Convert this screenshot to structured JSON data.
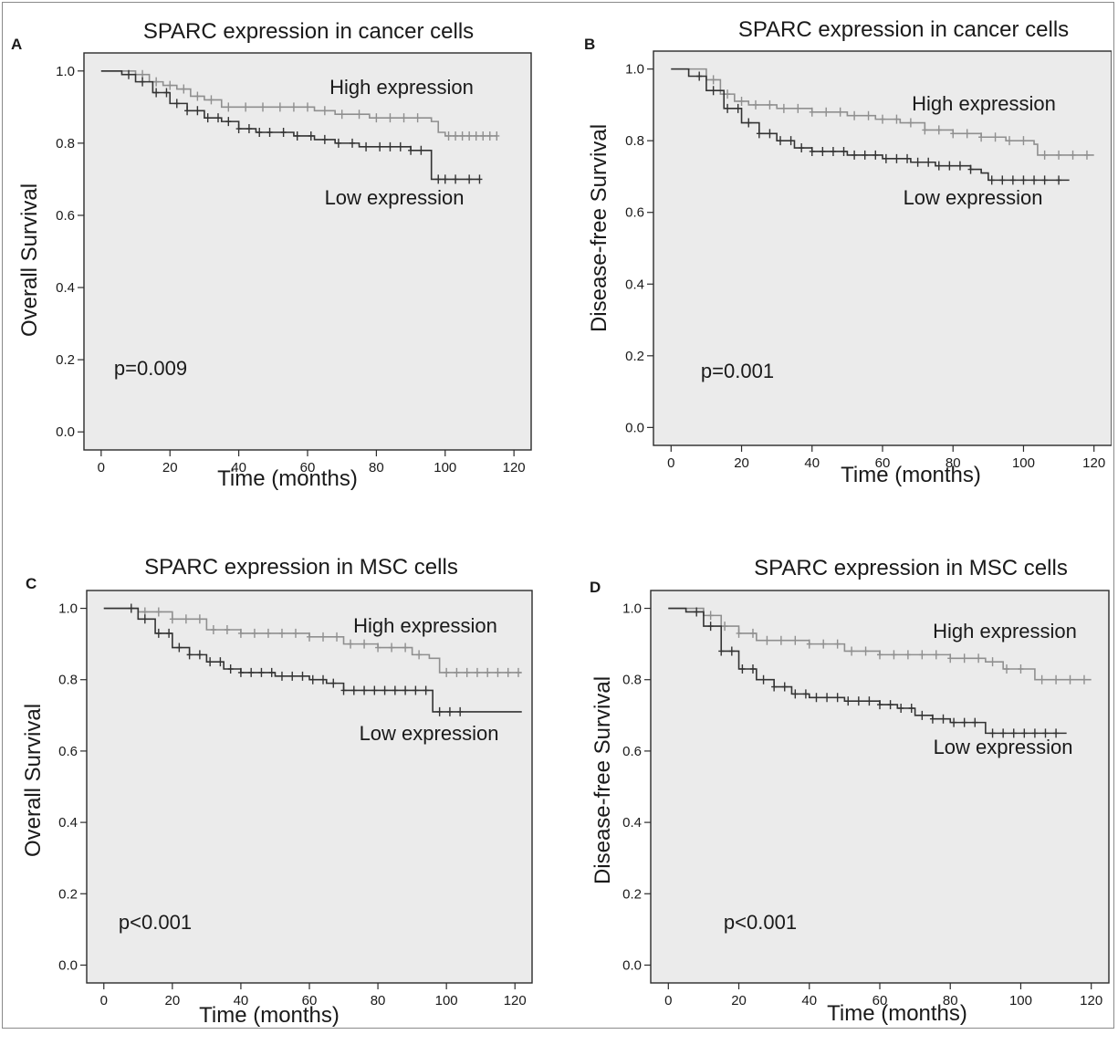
{
  "figure": {
    "panels": [
      "A",
      "B",
      "C",
      "D"
    ]
  },
  "chart_data": [
    {
      "panel_label": "A",
      "type": "line",
      "title": "SPARC expression in cancer cells",
      "xlabel": "Time (months)",
      "ylabel": "Overall Survival",
      "xlim": [
        -5,
        125
      ],
      "ylim": [
        -0.05,
        1.05
      ],
      "xticks": [
        "0",
        "20",
        "40",
        "60",
        "80",
        "100",
        "120"
      ],
      "yticks": [
        "0.0",
        "0.2",
        "0.4",
        "0.6",
        "0.8",
        "1.0"
      ],
      "annotation": "p=0.009",
      "grid": false,
      "series": [
        {
          "name": "High expression",
          "color": "#8f8f8f",
          "points": [
            [
              0,
              1.0
            ],
            [
              5,
              1.0
            ],
            [
              10,
              0.99
            ],
            [
              14,
              0.97
            ],
            [
              18,
              0.96
            ],
            [
              22,
              0.95
            ],
            [
              26,
              0.93
            ],
            [
              30,
              0.92
            ],
            [
              35,
              0.9
            ],
            [
              45,
              0.9
            ],
            [
              55,
              0.9
            ],
            [
              62,
              0.89
            ],
            [
              68,
              0.88
            ],
            [
              78,
              0.87
            ],
            [
              88,
              0.87
            ],
            [
              96,
              0.86
            ],
            [
              98,
              0.83
            ],
            [
              100,
              0.82
            ],
            [
              115,
              0.82
            ]
          ],
          "censor": [
            12,
            16,
            20,
            24,
            28,
            32,
            37,
            42,
            47,
            52,
            56,
            60,
            65,
            70,
            75,
            80,
            84,
            88,
            92,
            101,
            103,
            105,
            107,
            109,
            111,
            113,
            115
          ]
        },
        {
          "name": "Low expression",
          "color": "#333333",
          "points": [
            [
              0,
              1.0
            ],
            [
              6,
              0.99
            ],
            [
              10,
              0.97
            ],
            [
              15,
              0.94
            ],
            [
              20,
              0.91
            ],
            [
              25,
              0.89
            ],
            [
              30,
              0.87
            ],
            [
              35,
              0.86
            ],
            [
              40,
              0.84
            ],
            [
              45,
              0.83
            ],
            [
              50,
              0.83
            ],
            [
              56,
              0.82
            ],
            [
              62,
              0.81
            ],
            [
              68,
              0.8
            ],
            [
              75,
              0.79
            ],
            [
              85,
              0.79
            ],
            [
              90,
              0.78
            ],
            [
              95,
              0.78
            ],
            [
              96,
              0.7
            ],
            [
              110,
              0.7
            ]
          ],
          "censor": [
            8,
            12,
            16,
            19,
            22,
            25,
            28,
            31,
            34,
            37,
            40,
            43,
            46,
            49,
            53,
            57,
            61,
            65,
            69,
            73,
            77,
            81,
            84,
            87,
            90,
            93,
            98,
            100,
            103,
            107,
            110
          ]
        }
      ],
      "series_labels": [
        "High expression",
        "Low expression"
      ]
    },
    {
      "panel_label": "B",
      "type": "line",
      "title": "SPARC expression in cancer cells",
      "xlabel": "Time (months)",
      "ylabel": "Disease-free Survival",
      "xlim": [
        -5,
        125
      ],
      "ylim": [
        -0.05,
        1.05
      ],
      "xticks": [
        "0",
        "20",
        "40",
        "60",
        "80",
        "100",
        "120"
      ],
      "yticks": [
        "0.0",
        "0.2",
        "0.4",
        "0.6",
        "0.8",
        "1.0"
      ],
      "annotation": "p=0.001",
      "grid": false,
      "series": [
        {
          "name": "High expression",
          "color": "#8f8f8f",
          "points": [
            [
              0,
              1.0
            ],
            [
              6,
              1.0
            ],
            [
              10,
              0.97
            ],
            [
              14,
              0.93
            ],
            [
              18,
              0.91
            ],
            [
              22,
              0.9
            ],
            [
              30,
              0.89
            ],
            [
              40,
              0.88
            ],
            [
              50,
              0.87
            ],
            [
              58,
              0.86
            ],
            [
              65,
              0.85
            ],
            [
              72,
              0.83
            ],
            [
              80,
              0.82
            ],
            [
              88,
              0.81
            ],
            [
              95,
              0.8
            ],
            [
              103,
              0.79
            ],
            [
              104,
              0.76
            ],
            [
              120,
              0.76
            ]
          ],
          "censor": [
            12,
            16,
            20,
            24,
            28,
            32,
            36,
            40,
            44,
            48,
            52,
            56,
            60,
            64,
            68,
            72,
            76,
            80,
            84,
            88,
            92,
            96,
            100,
            106,
            110,
            114,
            118
          ]
        },
        {
          "name": "Low expression",
          "color": "#333333",
          "points": [
            [
              0,
              1.0
            ],
            [
              5,
              0.98
            ],
            [
              10,
              0.94
            ],
            [
              15,
              0.89
            ],
            [
              20,
              0.85
            ],
            [
              25,
              0.82
            ],
            [
              30,
              0.8
            ],
            [
              35,
              0.78
            ],
            [
              40,
              0.77
            ],
            [
              50,
              0.76
            ],
            [
              60,
              0.75
            ],
            [
              68,
              0.74
            ],
            [
              75,
              0.73
            ],
            [
              85,
              0.72
            ],
            [
              88,
              0.71
            ],
            [
              90,
              0.69
            ],
            [
              113,
              0.69
            ]
          ],
          "censor": [
            8,
            12,
            16,
            19,
            22,
            25,
            28,
            31,
            34,
            37,
            40,
            43,
            46,
            49,
            52,
            55,
            58,
            61,
            64,
            67,
            70,
            73,
            76,
            79,
            82,
            85,
            91,
            94,
            97,
            100,
            103,
            106,
            110
          ]
        }
      ],
      "series_labels": [
        "High expression",
        "Low expression"
      ]
    },
    {
      "panel_label": "C",
      "type": "line",
      "title": "SPARC expression in MSC cells",
      "xlabel": "Time (months)",
      "ylabel": "Overall Survival",
      "xlim": [
        -5,
        125
      ],
      "ylim": [
        -0.05,
        1.05
      ],
      "xticks": [
        "0",
        "20",
        "40",
        "60",
        "80",
        "100",
        "120"
      ],
      "yticks": [
        "0.0",
        "0.2",
        "0.4",
        "0.6",
        "0.8",
        "1.0"
      ],
      "annotation": "p<0.001",
      "grid": false,
      "series": [
        {
          "name": "High expression",
          "color": "#8f8f8f",
          "points": [
            [
              0,
              1.0
            ],
            [
              5,
              1.0
            ],
            [
              10,
              0.99
            ],
            [
              20,
              0.97
            ],
            [
              30,
              0.94
            ],
            [
              40,
              0.93
            ],
            [
              50,
              0.93
            ],
            [
              60,
              0.92
            ],
            [
              70,
              0.9
            ],
            [
              80,
              0.89
            ],
            [
              90,
              0.87
            ],
            [
              95,
              0.86
            ],
            [
              98,
              0.82
            ],
            [
              122,
              0.82
            ]
          ],
          "censor": [
            12,
            16,
            20,
            24,
            28,
            32,
            36,
            40,
            44,
            48,
            52,
            56,
            60,
            64,
            68,
            72,
            76,
            80,
            84,
            88,
            92,
            100,
            103,
            106,
            109,
            112,
            115,
            118,
            121
          ]
        },
        {
          "name": "Low expression",
          "color": "#333333",
          "points": [
            [
              0,
              1.0
            ],
            [
              5,
              1.0
            ],
            [
              10,
              0.97
            ],
            [
              15,
              0.93
            ],
            [
              20,
              0.89
            ],
            [
              25,
              0.87
            ],
            [
              30,
              0.85
            ],
            [
              35,
              0.83
            ],
            [
              40,
              0.82
            ],
            [
              50,
              0.81
            ],
            [
              60,
              0.8
            ],
            [
              65,
              0.79
            ],
            [
              70,
              0.77
            ],
            [
              80,
              0.77
            ],
            [
              95,
              0.77
            ],
            [
              96,
              0.71
            ],
            [
              122,
              0.71
            ]
          ],
          "censor": [
            8,
            12,
            16,
            19,
            22,
            25,
            28,
            31,
            34,
            37,
            40,
            43,
            46,
            49,
            52,
            55,
            58,
            61,
            64,
            67,
            70,
            73,
            76,
            79,
            82,
            85,
            88,
            91,
            94,
            98,
            101,
            104
          ]
        }
      ],
      "series_labels": [
        "High expression",
        "Low expression"
      ]
    },
    {
      "panel_label": "D",
      "type": "line",
      "title": "SPARC expression in MSC cells",
      "xlabel": "Time (months)",
      "ylabel": "Disease-free Survival",
      "xlim": [
        -5,
        125
      ],
      "ylim": [
        -0.05,
        1.05
      ],
      "xticks": [
        "0",
        "20",
        "40",
        "60",
        "80",
        "100",
        "120"
      ],
      "yticks": [
        "0.0",
        "0.2",
        "0.4",
        "0.6",
        "0.8",
        "1.0"
      ],
      "annotation": "p<0.001",
      "grid": false,
      "series": [
        {
          "name": "High expression",
          "color": "#8f8f8f",
          "points": [
            [
              0,
              1.0
            ],
            [
              5,
              1.0
            ],
            [
              10,
              0.98
            ],
            [
              15,
              0.95
            ],
            [
              20,
              0.93
            ],
            [
              25,
              0.91
            ],
            [
              30,
              0.91
            ],
            [
              40,
              0.9
            ],
            [
              50,
              0.88
            ],
            [
              60,
              0.87
            ],
            [
              70,
              0.87
            ],
            [
              80,
              0.86
            ],
            [
              90,
              0.85
            ],
            [
              95,
              0.83
            ],
            [
              103,
              0.83
            ],
            [
              104,
              0.8
            ],
            [
              120,
              0.8
            ]
          ],
          "censor": [
            12,
            16,
            20,
            24,
            28,
            32,
            36,
            40,
            44,
            48,
            52,
            56,
            60,
            64,
            68,
            72,
            76,
            80,
            84,
            88,
            92,
            96,
            100,
            106,
            110,
            114,
            118
          ]
        },
        {
          "name": "Low expression",
          "color": "#333333",
          "points": [
            [
              0,
              1.0
            ],
            [
              5,
              0.99
            ],
            [
              10,
              0.95
            ],
            [
              15,
              0.88
            ],
            [
              20,
              0.83
            ],
            [
              25,
              0.8
            ],
            [
              30,
              0.78
            ],
            [
              35,
              0.76
            ],
            [
              40,
              0.75
            ],
            [
              50,
              0.74
            ],
            [
              60,
              0.73
            ],
            [
              65,
              0.72
            ],
            [
              70,
              0.7
            ],
            [
              75,
              0.69
            ],
            [
              80,
              0.68
            ],
            [
              88,
              0.68
            ],
            [
              90,
              0.65
            ],
            [
              113,
              0.65
            ]
          ],
          "censor": [
            8,
            12,
            15,
            18,
            21,
            24,
            27,
            30,
            33,
            36,
            39,
            42,
            45,
            48,
            51,
            54,
            57,
            60,
            63,
            66,
            69,
            72,
            75,
            78,
            81,
            84,
            87,
            92,
            95,
            98,
            101,
            104,
            107,
            110
          ]
        }
      ],
      "series_labels": [
        "High expression",
        "Low expression"
      ]
    }
  ]
}
